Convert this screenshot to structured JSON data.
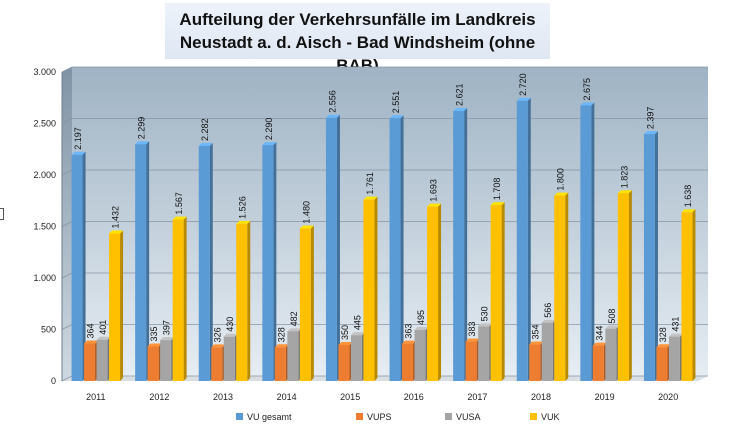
{
  "chart_data": {
    "type": "bar",
    "title_line1": "Aufteilung der Verkehrsunfälle im Landkreis",
    "title_line2": "Neustadt a. d. Aisch - Bad Windsheim (ohne BAB)",
    "categories": [
      "2011",
      "2012",
      "2013",
      "2014",
      "2015",
      "2016",
      "2017",
      "2018",
      "2019",
      "2020"
    ],
    "series": [
      {
        "name": "VU gesamt",
        "color": "#5b9bd5",
        "values": [
          2197,
          2299,
          2282,
          2290,
          2556,
          2551,
          2621,
          2720,
          2675,
          2397
        ],
        "labels": [
          "2.197",
          "2.299",
          "2.282",
          "2.290",
          "2.556",
          "2.551",
          "2.621",
          "2.720",
          "2.675",
          "2.397"
        ]
      },
      {
        "name": "VUPS",
        "color": "#ed7d31",
        "values": [
          364,
          335,
          326,
          328,
          350,
          363,
          383,
          354,
          344,
          328
        ],
        "labels": [
          "364",
          "335",
          "326",
          "328",
          "350",
          "363",
          "383",
          "354",
          "344",
          "328"
        ]
      },
      {
        "name": "VUSA",
        "color": "#a5a5a5",
        "values": [
          401,
          397,
          430,
          482,
          445,
          495,
          530,
          566,
          508,
          431
        ],
        "labels": [
          "401",
          "397",
          "430",
          "482",
          "445",
          "495",
          "530",
          "566",
          "508",
          "431"
        ]
      },
      {
        "name": "VUK",
        "color": "#ffc000",
        "values": [
          1432,
          1567,
          1526,
          1480,
          1761,
          1693,
          1708,
          1800,
          1823,
          1638
        ],
        "labels": [
          "1.432",
          "1.567",
          "1.526",
          "1.480",
          "1.761",
          "1.693",
          "1.708",
          "1.800",
          "1.823",
          "1.638"
        ]
      }
    ],
    "yticks": [
      0,
      500,
      1000,
      1500,
      2000,
      2500,
      3000
    ],
    "ytick_labels": [
      "0",
      "500",
      "1.000",
      "1.500",
      "2.000",
      "2.500",
      "3.000"
    ],
    "ylim": [
      0,
      3000
    ],
    "legend_position": "bottom"
  }
}
